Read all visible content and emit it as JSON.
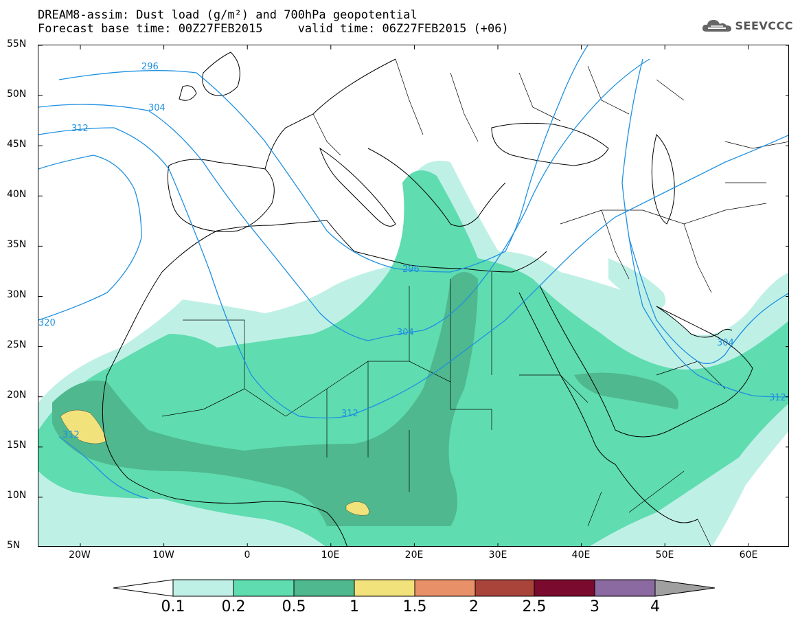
{
  "header": {
    "title_line1": "DREAM8-assim: Dust load (g/m²) and 700hPa geopotential",
    "title_line2": "Forecast base time: 00Z27FEB2015     valid time: 06Z27FEB2015 (+06)",
    "logo_text": "SEEVCCC",
    "logo_icon": "cloud-icon"
  },
  "map": {
    "lat_labels": [
      "55N",
      "50N",
      "45N",
      "40N",
      "35N",
      "30N",
      "25N",
      "20N",
      "15N",
      "10N",
      "5N"
    ],
    "lon_labels": [
      "20W",
      "10W",
      "0",
      "10E",
      "20E",
      "30E",
      "40E",
      "50E",
      "60E"
    ],
    "contour_labels": [
      "296",
      "304",
      "312",
      "320",
      "296",
      "304",
      "312",
      "312",
      "304",
      "312"
    ],
    "colors": {
      "coast": "#000000",
      "contour": "#1e90e0",
      "land": "#ffffff"
    }
  },
  "colorbar": {
    "labels": [
      "0.1",
      "0.2",
      "0.5",
      "1",
      "1.5",
      "2",
      "2.5",
      "3",
      "4"
    ],
    "colors": [
      "#ffffff",
      "#bff0e6",
      "#5fdcb0",
      "#4fb88e",
      "#f2e27c",
      "#e89068",
      "#a9443a",
      "#7a0a2e",
      "#8a6aa0",
      "#a0a0a0"
    ]
  }
}
